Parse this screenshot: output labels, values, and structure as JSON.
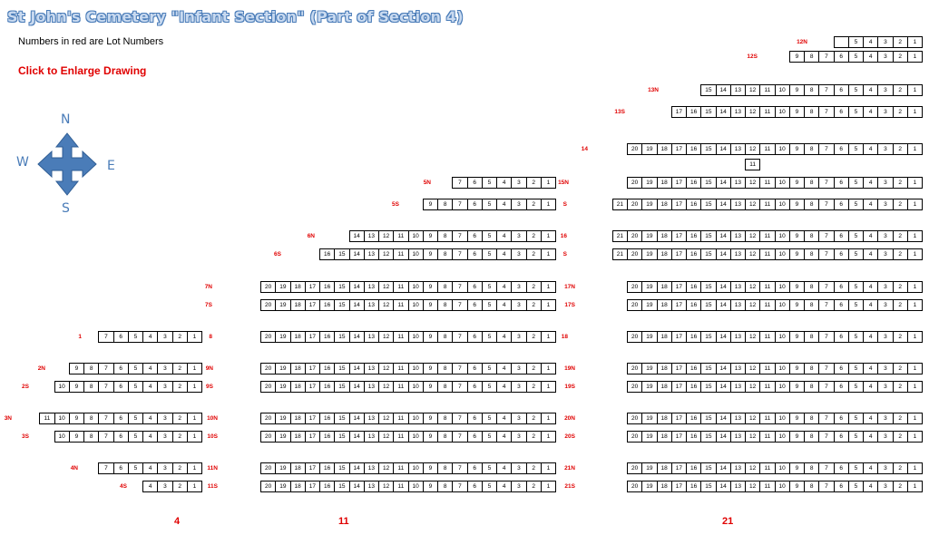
{
  "title": "St John's Cemetery \"Infant Section\" (Part of Section 4)",
  "note": "Numbers in red are Lot Numbers",
  "enlarge_link": "Click to Enlarge Drawing",
  "compass": {
    "n": "N",
    "s": "S",
    "e": "E",
    "w": "W",
    "color": "#4a7cb8"
  },
  "colors": {
    "lot_label": "#e00000",
    "grid": "#000000"
  },
  "rows": [
    {
      "label": "12N",
      "start": 5,
      "blanks": 1
    },
    {
      "label": "12S",
      "start": 9
    },
    {
      "label": "13N",
      "start": 15
    },
    {
      "label": "13S",
      "start": 17
    },
    {
      "label": "14",
      "start": 20
    },
    {
      "label": "15N",
      "start": 20
    },
    {
      "label": "S",
      "start": 21
    },
    {
      "label": "16",
      "start": 21
    },
    {
      "label": "S",
      "start": 21
    },
    {
      "label": "17N",
      "start": 20
    },
    {
      "label": "17S",
      "start": 20
    },
    {
      "label": "18",
      "start": 20
    },
    {
      "label": "19N",
      "start": 20
    },
    {
      "label": "19S",
      "start": 20
    },
    {
      "label": "20N",
      "start": 20
    },
    {
      "label": "20S",
      "start": 20
    },
    {
      "label": "21N",
      "start": 20
    },
    {
      "label": "21S",
      "start": 20
    },
    {
      "label": "5N",
      "start": 7
    },
    {
      "label": "5S",
      "start": 9
    },
    {
      "label": "6N",
      "start": 14
    },
    {
      "label": "6S",
      "start": 16
    },
    {
      "label": "7N",
      "start": 20
    },
    {
      "label": "7S",
      "start": 20
    },
    {
      "label": "8",
      "start": 20
    },
    {
      "label": "9N",
      "start": 20
    },
    {
      "label": "9S",
      "start": 20
    },
    {
      "label": "10N",
      "start": 20
    },
    {
      "label": "10S",
      "start": 20
    },
    {
      "label": "11N",
      "start": 20
    },
    {
      "label": "11S",
      "start": 20
    },
    {
      "label": "1",
      "start": 7
    },
    {
      "label": "2N",
      "start": 9
    },
    {
      "label": "2S",
      "start": 10
    },
    {
      "label": "3N",
      "start": 11
    },
    {
      "label": "3S",
      "start": 10
    },
    {
      "label": "4N",
      "start": 7
    },
    {
      "label": "4S",
      "start": 4
    }
  ],
  "extra_cells": [
    {
      "value": "11"
    }
  ],
  "section_labels": [
    "4",
    "11",
    "21"
  ]
}
